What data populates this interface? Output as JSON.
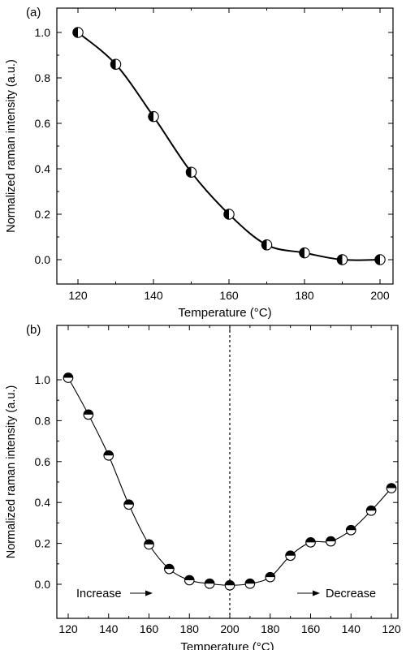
{
  "chart_data": [
    {
      "type": "line",
      "panel_label": "(a)",
      "xlabel": "Temperature (°C)",
      "ylabel": "Normalized raman intensity (a.u.)",
      "x_ticks": [
        "120",
        "140",
        "160",
        "180",
        "200"
      ],
      "y_ticks": [
        "0.0",
        "0.2",
        "0.4",
        "0.6",
        "0.8",
        "1.0"
      ],
      "xlim": [
        115,
        205
      ],
      "ylim": [
        -0.1,
        1.06
      ],
      "grid": false,
      "marker": "half-filled-left",
      "series": [
        {
          "x": [
            120,
            130,
            140,
            150,
            160,
            170,
            180,
            190,
            200
          ],
          "values": [
            1.0,
            0.86,
            0.63,
            0.385,
            0.2,
            0.065,
            0.03,
            0.0,
            0.0
          ]
        }
      ]
    },
    {
      "type": "line",
      "panel_label": "(b)",
      "xlabel": "Temperature (°C)",
      "ylabel": "Normalized raman intensity (a.u.)",
      "x_ticks": [
        "120",
        "140",
        "160",
        "180",
        "200",
        "180",
        "160",
        "140",
        "120"
      ],
      "y_ticks": [
        "0.0",
        "0.2",
        "0.4",
        "0.6",
        "0.8",
        "1.0"
      ],
      "ylim": [
        -0.08,
        1.06
      ],
      "grid": false,
      "marker": "half-filled-top",
      "annotations": {
        "left": "Increase",
        "right": "Decrease",
        "divider_at": 200
      },
      "series": [
        {
          "x": [
            120,
            130,
            140,
            150,
            160,
            170,
            180,
            190,
            200,
            190,
            180,
            170,
            160,
            150,
            140,
            130,
            120
          ],
          "values": [
            1.01,
            0.83,
            0.63,
            0.39,
            0.195,
            0.075,
            0.02,
            0.003,
            -0.005,
            0.003,
            0.035,
            0.14,
            0.205,
            0.21,
            0.265,
            0.36,
            0.47
          ]
        }
      ]
    }
  ]
}
